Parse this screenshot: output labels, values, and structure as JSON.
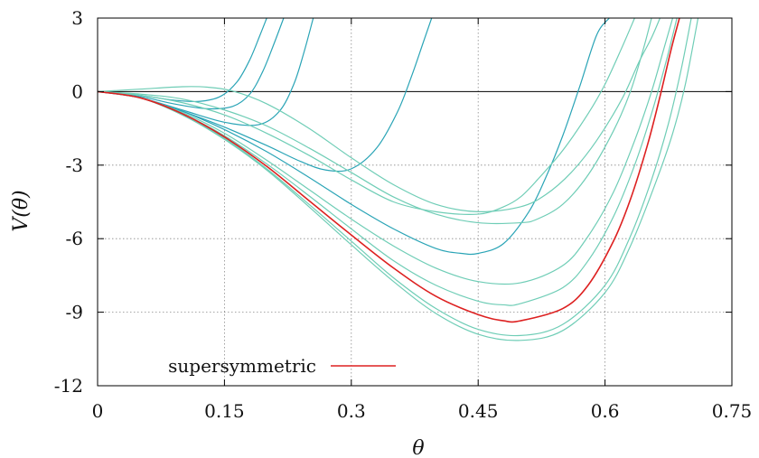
{
  "chart_data": {
    "type": "line",
    "title": "",
    "xlabel": "θ",
    "ylabel": "V(θ)",
    "xlim": [
      0,
      0.75
    ],
    "ylim": [
      -12,
      3
    ],
    "xticks": [
      "0",
      "0.15",
      "0.3",
      "0.45",
      "0.6",
      "0.75"
    ],
    "yticks": [
      "3",
      "0",
      "-3",
      "-6",
      "-9",
      "-12"
    ],
    "grid": true,
    "legend": {
      "placement": "bottom-left",
      "entries": [
        {
          "label": "supersymmetric",
          "color": "#dd2020"
        }
      ]
    },
    "colors": {
      "supersymmetric": "#dd2020",
      "family_dark": "#2aa4b6",
      "family_light": "#6fcdb6"
    },
    "series": [
      {
        "color": "#2aa4b6",
        "x": [
          0,
          0.05,
          0.09,
          0.12,
          0.145,
          0.165,
          0.18,
          0.192,
          0.2
        ],
        "y": [
          0,
          -0.15,
          -0.35,
          -0.4,
          -0.2,
          0.4,
          1.3,
          2.3,
          3
        ]
      },
      {
        "color": "#2aa4b6",
        "x": [
          0,
          0.05,
          0.09,
          0.13,
          0.16,
          0.18,
          0.195,
          0.208,
          0.22
        ],
        "y": [
          0,
          -0.2,
          -0.5,
          -0.7,
          -0.6,
          -0.1,
          0.8,
          1.9,
          3
        ]
      },
      {
        "color": "#2aa4b6",
        "x": [
          0,
          0.05,
          0.1,
          0.15,
          0.19,
          0.215,
          0.232,
          0.244,
          0.255
        ],
        "y": [
          0,
          -0.25,
          -0.75,
          -1.25,
          -1.35,
          -0.8,
          0.3,
          1.6,
          3
        ]
      },
      {
        "color": "#2aa4b6",
        "x": [
          0,
          0.05,
          0.1,
          0.15,
          0.2,
          0.24,
          0.27,
          0.3,
          0.33,
          0.355,
          0.372,
          0.385,
          0.395
        ],
        "y": [
          0,
          -0.25,
          -0.8,
          -1.45,
          -2.2,
          -2.85,
          -3.2,
          -3.15,
          -2.3,
          -0.8,
          0.7,
          2.0,
          3
        ]
      },
      {
        "color": "#2aa4b6",
        "x": [
          0,
          0.05,
          0.1,
          0.15,
          0.2,
          0.25,
          0.3,
          0.35,
          0.4,
          0.43,
          0.45,
          0.48,
          0.51,
          0.53,
          0.55,
          0.57,
          0.59,
          0.605
        ],
        "y": [
          0,
          -0.25,
          -0.8,
          -1.55,
          -2.45,
          -3.5,
          -4.6,
          -5.6,
          -6.4,
          -6.6,
          -6.6,
          -6.2,
          -4.9,
          -3.5,
          -1.8,
          0.2,
          2.3,
          3
        ]
      },
      {
        "color": "#6fcdb6",
        "x": [
          0,
          0.05,
          0.1,
          0.15,
          0.2,
          0.25,
          0.3,
          0.35,
          0.4,
          0.45,
          0.48,
          0.5,
          0.52,
          0.55,
          0.58,
          0.6,
          0.62,
          0.635
        ],
        "y": [
          0,
          -0.15,
          -0.45,
          -0.95,
          -1.7,
          -2.6,
          -3.6,
          -4.5,
          -4.9,
          -5.0,
          -4.7,
          -4.3,
          -3.6,
          -2.4,
          -0.9,
          0.3,
          1.8,
          3
        ]
      },
      {
        "color": "#6fcdb6",
        "x": [
          0,
          0.05,
          0.1,
          0.15,
          0.2,
          0.25,
          0.3,
          0.35,
          0.4,
          0.45,
          0.5,
          0.52,
          0.55,
          0.58,
          0.61,
          0.63,
          0.645,
          0.655
        ],
        "y": [
          0,
          -0.1,
          -0.3,
          -0.75,
          -1.4,
          -2.3,
          -3.3,
          -4.3,
          -5.0,
          -5.35,
          -5.35,
          -5.2,
          -4.6,
          -3.4,
          -1.6,
          0.0,
          1.7,
          3
        ]
      },
      {
        "color": "#6fcdb6",
        "x": [
          0,
          0.05,
          0.1,
          0.13,
          0.16,
          0.2,
          0.25,
          0.3,
          0.35,
          0.4,
          0.45,
          0.5,
          0.53,
          0.56,
          0.59,
          0.62,
          0.64,
          0.655,
          0.665
        ],
        "y": [
          0,
          0.1,
          0.2,
          0.18,
          0.02,
          -0.5,
          -1.5,
          -2.7,
          -3.8,
          -4.6,
          -4.9,
          -4.7,
          -4.2,
          -3.3,
          -2.0,
          -0.3,
          1.2,
          2.2,
          3
        ]
      },
      {
        "color": "#6fcdb6",
        "x": [
          0,
          0.05,
          0.1,
          0.15,
          0.2,
          0.25,
          0.3,
          0.35,
          0.4,
          0.45,
          0.5,
          0.55,
          0.58,
          0.61,
          0.635,
          0.655,
          0.67,
          0.68
        ],
        "y": [
          0,
          -0.25,
          -0.85,
          -1.7,
          -2.8,
          -4.0,
          -5.2,
          -6.3,
          -7.2,
          -7.75,
          -7.8,
          -7.1,
          -5.9,
          -4.1,
          -2.0,
          0.0,
          1.8,
          3
        ]
      },
      {
        "color": "#6fcdb6",
        "x": [
          0,
          0.05,
          0.1,
          0.15,
          0.2,
          0.25,
          0.3,
          0.35,
          0.4,
          0.45,
          0.48,
          0.5,
          0.55,
          0.58,
          0.61,
          0.635,
          0.655,
          0.672,
          0.685
        ],
        "y": [
          0,
          -0.25,
          -0.9,
          -1.8,
          -2.95,
          -4.25,
          -5.6,
          -6.9,
          -7.9,
          -8.55,
          -8.7,
          -8.65,
          -8.0,
          -6.9,
          -5.1,
          -3.0,
          -0.9,
          1.2,
          3
        ]
      },
      {
        "color": "#dd2020",
        "name": "supersymmetric",
        "x": [
          0,
          0.05,
          0.1,
          0.15,
          0.2,
          0.25,
          0.3,
          0.35,
          0.4,
          0.45,
          0.48,
          0.5,
          0.55,
          0.58,
          0.61,
          0.63,
          0.65,
          0.665,
          0.678,
          0.688
        ],
        "y": [
          0,
          -0.25,
          -0.9,
          -1.85,
          -3.05,
          -4.45,
          -5.85,
          -7.2,
          -8.35,
          -9.1,
          -9.35,
          -9.35,
          -8.85,
          -7.9,
          -6.1,
          -4.4,
          -2.2,
          -0.2,
          1.7,
          3
        ]
      },
      {
        "color": "#6fcdb6",
        "x": [
          0,
          0.05,
          0.1,
          0.15,
          0.2,
          0.25,
          0.3,
          0.35,
          0.4,
          0.45,
          0.5,
          0.55,
          0.6,
          0.63,
          0.655,
          0.675,
          0.69,
          0.702
        ],
        "y": [
          0,
          -0.25,
          -0.95,
          -1.9,
          -3.15,
          -4.6,
          -6.1,
          -7.6,
          -8.85,
          -9.7,
          -9.95,
          -9.5,
          -7.9,
          -5.9,
          -3.6,
          -1.3,
          0.9,
          3
        ]
      },
      {
        "color": "#6fcdb6",
        "x": [
          0,
          0.05,
          0.1,
          0.15,
          0.2,
          0.25,
          0.3,
          0.35,
          0.4,
          0.45,
          0.5,
          0.55,
          0.6,
          0.63,
          0.66,
          0.68,
          0.695,
          0.71
        ],
        "y": [
          0,
          -0.25,
          -0.95,
          -1.95,
          -3.2,
          -4.7,
          -6.25,
          -7.75,
          -9.05,
          -9.9,
          -10.15,
          -9.75,
          -8.2,
          -6.3,
          -3.7,
          -1.7,
          0.3,
          3
        ]
      }
    ]
  }
}
